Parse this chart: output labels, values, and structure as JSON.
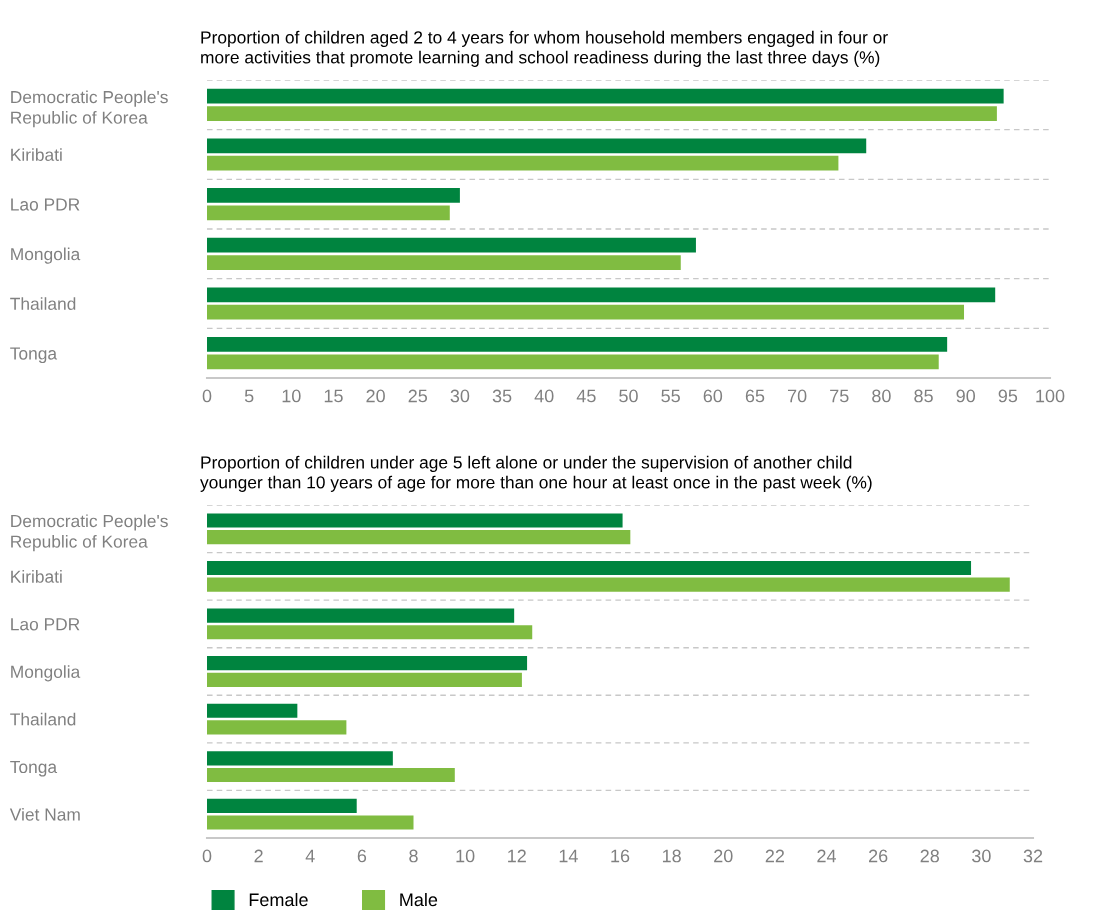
{
  "chart_data": [
    {
      "type": "bar",
      "orientation": "horizontal",
      "title": "Proportion of children aged 2 to 4 years for whom household members engaged in four or\nmore activities that promote learning and school readiness during the last three days (%)",
      "categories": [
        "Democratic People's\nRepublic of Korea",
        "Kiribati",
        "Lao PDR",
        "Mongolia",
        "Thailand",
        "Tonga"
      ],
      "series": [
        {
          "name": "Female",
          "color": "#00843f",
          "values": [
            94.5,
            78.2,
            30.0,
            58.0,
            93.5,
            87.8
          ]
        },
        {
          "name": "Male",
          "color": "#80bc41",
          "values": [
            93.7,
            74.9,
            28.8,
            56.2,
            89.8,
            86.8
          ]
        }
      ],
      "xlim": [
        0,
        100
      ],
      "xticks": [
        0,
        5,
        10,
        15,
        20,
        25,
        30,
        35,
        40,
        45,
        50,
        55,
        60,
        65,
        70,
        75,
        80,
        85,
        90,
        95,
        100
      ],
      "grid": false,
      "legend": "bottom"
    },
    {
      "type": "bar",
      "orientation": "horizontal",
      "title": "Proportion of children under age 5 left alone or under the supervision of another child\nyounger than 10 years of age for more than one hour at least once in the past week (%)",
      "categories": [
        "Democratic People's\nRepublic of Korea",
        "Kiribati",
        "Lao PDR",
        "Mongolia",
        "Thailand",
        "Tonga",
        "Viet Nam"
      ],
      "series": [
        {
          "color": "#00843f",
          "values": [
            16.1,
            29.6,
            11.9,
            12.4,
            3.5,
            7.2,
            5.8
          ]
        },
        {
          "color": "#80bc41",
          "values": [
            16.4,
            31.1,
            12.6,
            12.2,
            5.4,
            9.6,
            8.0
          ]
        }
      ],
      "xlim": [
        0,
        32
      ],
      "xticks": [
        0,
        2,
        4,
        6,
        8,
        10,
        12,
        14,
        16,
        18,
        20,
        22,
        24,
        26,
        28,
        30,
        32
      ],
      "grid": false
    }
  ]
}
